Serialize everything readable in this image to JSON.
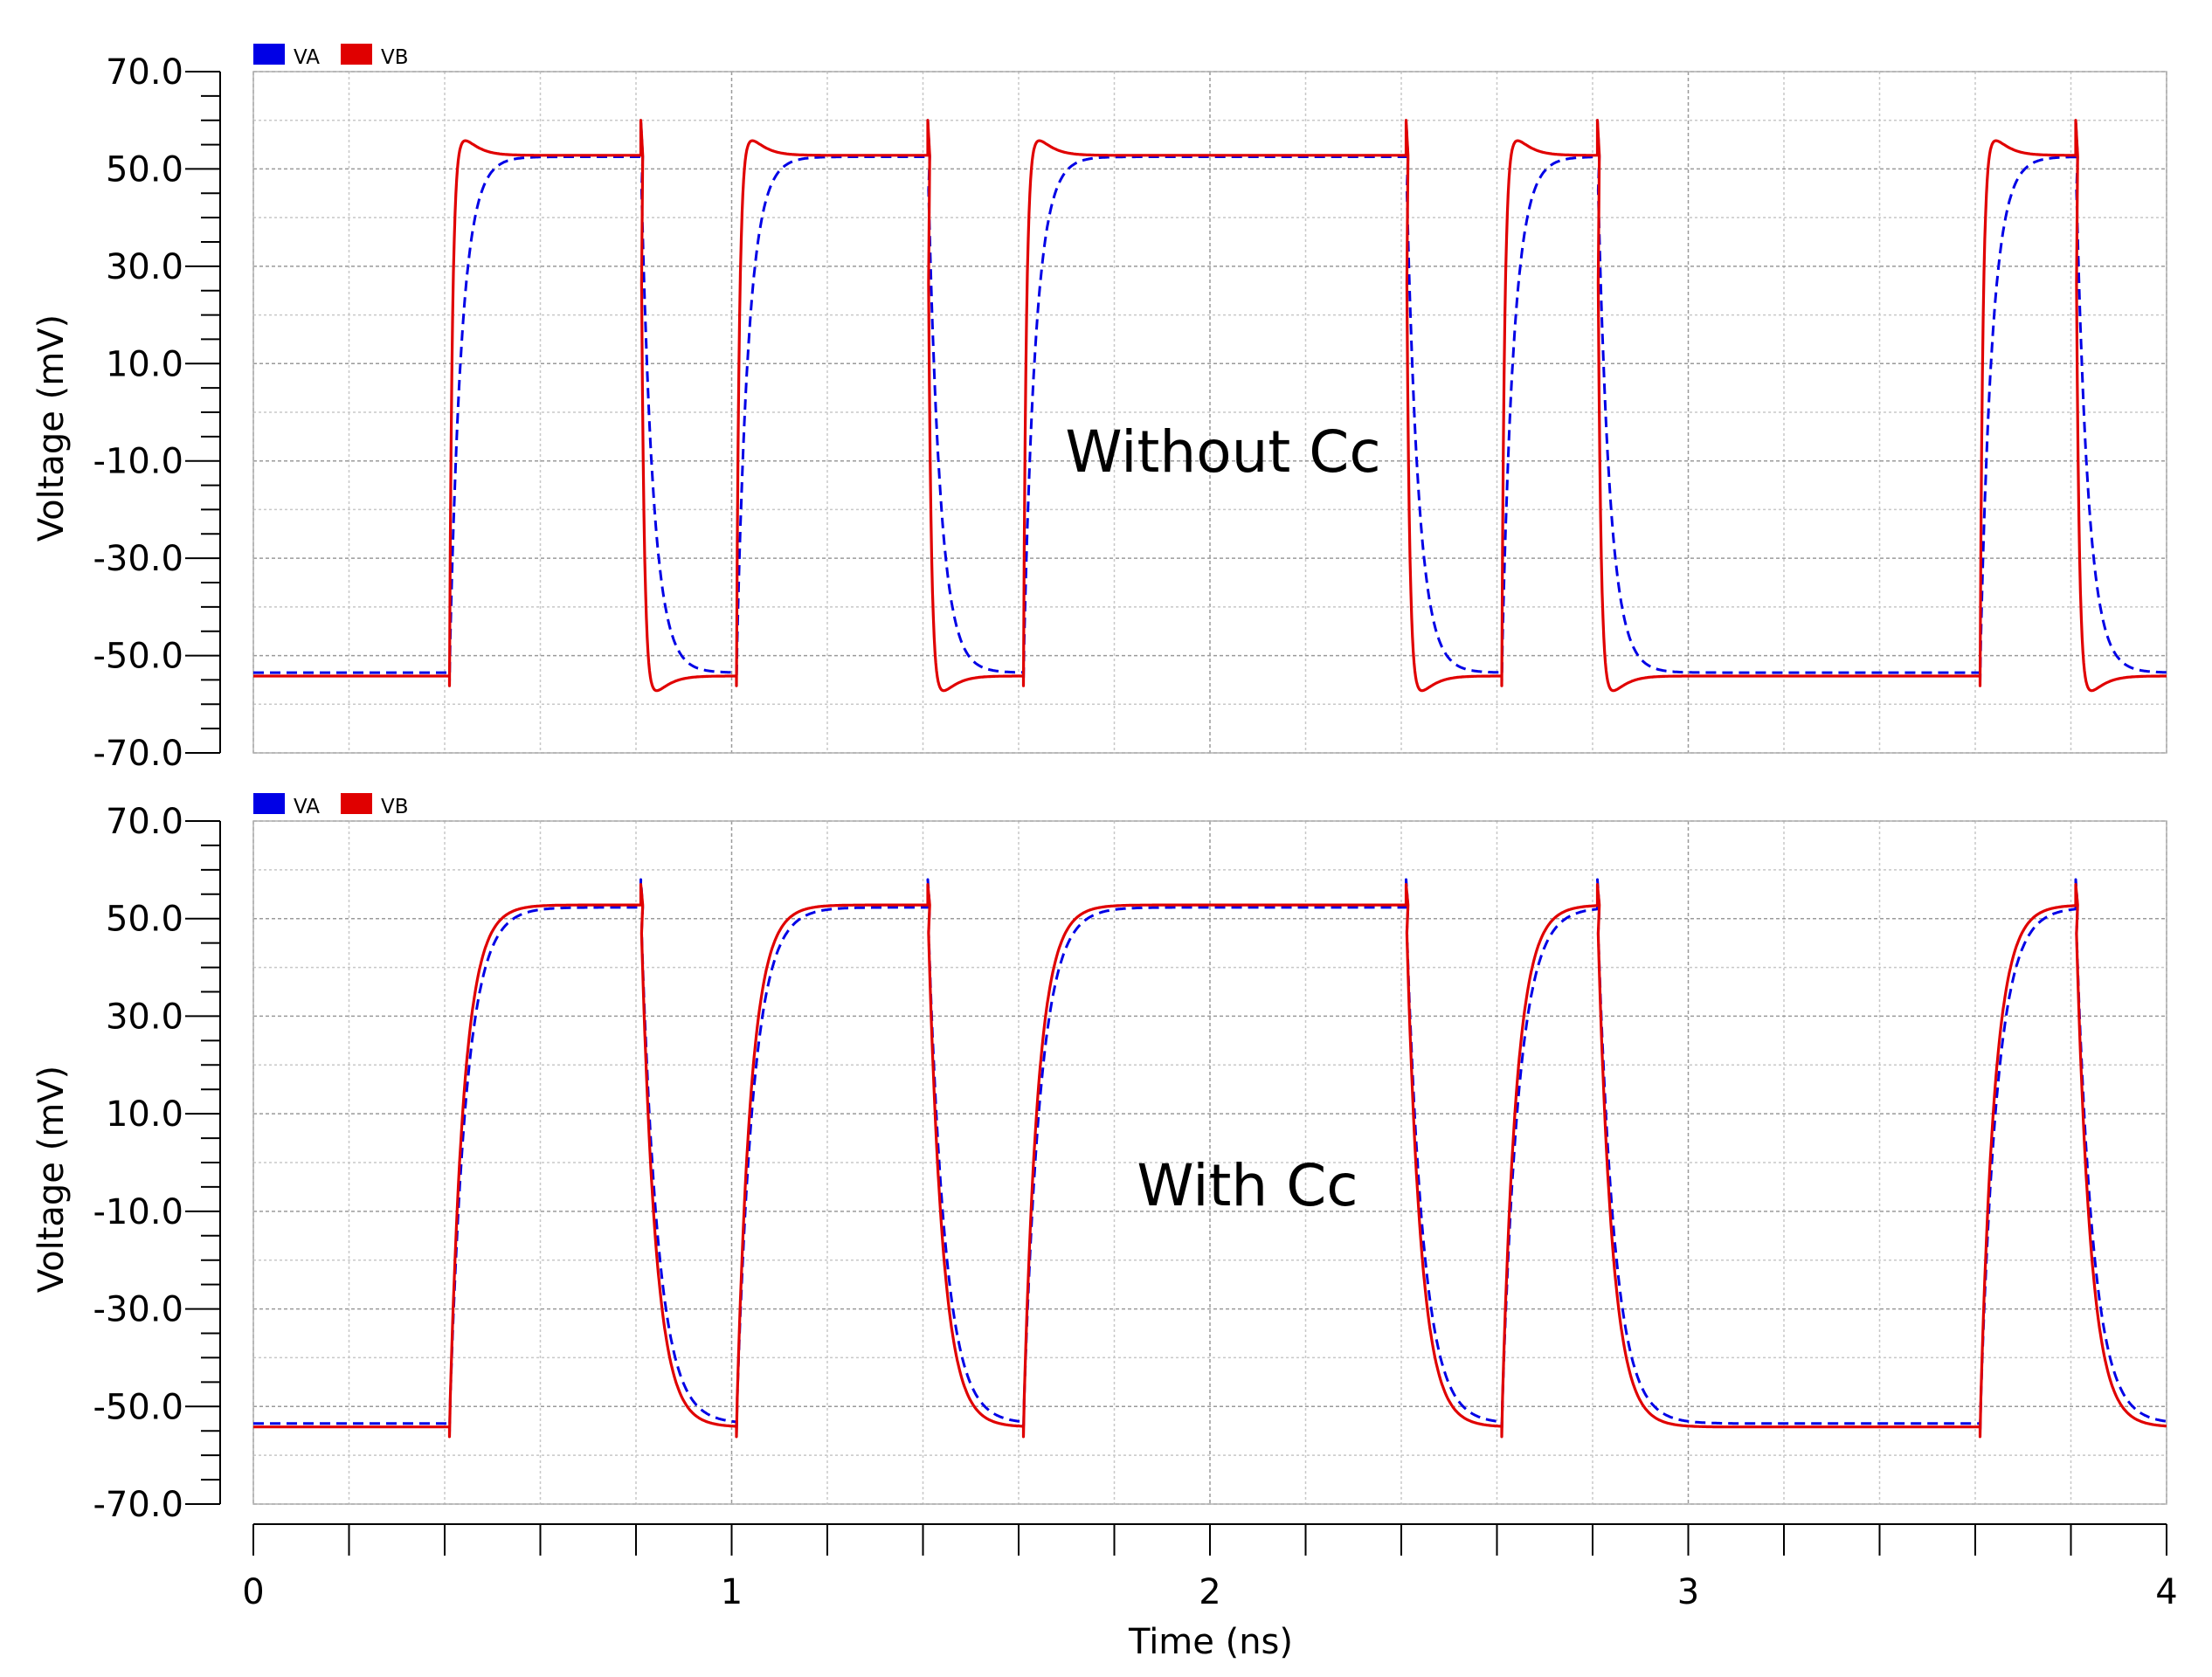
{
  "chart_data": [
    {
      "type": "line",
      "annotation": "Without Cc",
      "xlabel": "",
      "ylabel": "Voltage (mV)",
      "xlim": [
        0,
        4
      ],
      "ylim": [
        -70,
        70
      ],
      "yticks": [
        70,
        50,
        30,
        10,
        -10,
        -30,
        -50,
        -70
      ],
      "ytick_labels": [
        "70.0",
        "50.0",
        "30.0",
        "10.0",
        "-10.0",
        "-30.0",
        "-50.0",
        "-70.0"
      ],
      "grid": true,
      "legend_position": "top-left",
      "series": [
        {
          "name": "VA",
          "color": "#0000e6",
          "style": "dashed",
          "high": 52.5,
          "low": -53.5,
          "tau": 0.025,
          "overshoot": 0,
          "spike": 60
        },
        {
          "name": "VB",
          "color": "#e00000",
          "style": "solid",
          "high": 52.8,
          "low": -54.2,
          "tau": 0.006,
          "overshoot": 4,
          "spike": 60
        }
      ],
      "transitions": [
        [
          0.41,
          "rise"
        ],
        [
          0.81,
          "fall"
        ],
        [
          1.01,
          "rise"
        ],
        [
          1.41,
          "fall"
        ],
        [
          1.61,
          "rise"
        ],
        [
          2.41,
          "fall"
        ],
        [
          2.61,
          "rise"
        ],
        [
          2.81,
          "fall"
        ],
        [
          3.61,
          "rise"
        ],
        [
          3.81,
          "fall"
        ]
      ]
    },
    {
      "type": "line",
      "annotation": "With Cc",
      "xlabel": "Time (ns)",
      "ylabel": "Voltage (mV)",
      "xlim": [
        0,
        4
      ],
      "ylim": [
        -70,
        70
      ],
      "xticks": [
        0,
        1,
        2,
        3,
        4
      ],
      "xtick_labels": [
        "0",
        "1",
        "2",
        "3",
        "4"
      ],
      "yticks": [
        70,
        50,
        30,
        10,
        -10,
        -30,
        -50,
        -70
      ],
      "ytick_labels": [
        "70.0",
        "50.0",
        "30.0",
        "10.0",
        "-10.0",
        "-30.0",
        "-50.0",
        "-70.0"
      ],
      "grid": true,
      "legend_position": "top-left",
      "series": [
        {
          "name": "VA",
          "color": "#0000e6",
          "style": "dashed",
          "high": 52.3,
          "low": -53.5,
          "tau": 0.035,
          "overshoot": 0,
          "spike": 58
        },
        {
          "name": "VB",
          "color": "#e00000",
          "style": "solid",
          "high": 52.8,
          "low": -54.2,
          "tau": 0.03,
          "overshoot": 0,
          "spike": 57
        }
      ],
      "transitions": [
        [
          0.41,
          "rise"
        ],
        [
          0.81,
          "fall"
        ],
        [
          1.01,
          "rise"
        ],
        [
          1.41,
          "fall"
        ],
        [
          1.61,
          "rise"
        ],
        [
          2.41,
          "fall"
        ],
        [
          2.61,
          "rise"
        ],
        [
          2.81,
          "fall"
        ],
        [
          3.61,
          "rise"
        ],
        [
          3.81,
          "fall"
        ]
      ]
    }
  ]
}
